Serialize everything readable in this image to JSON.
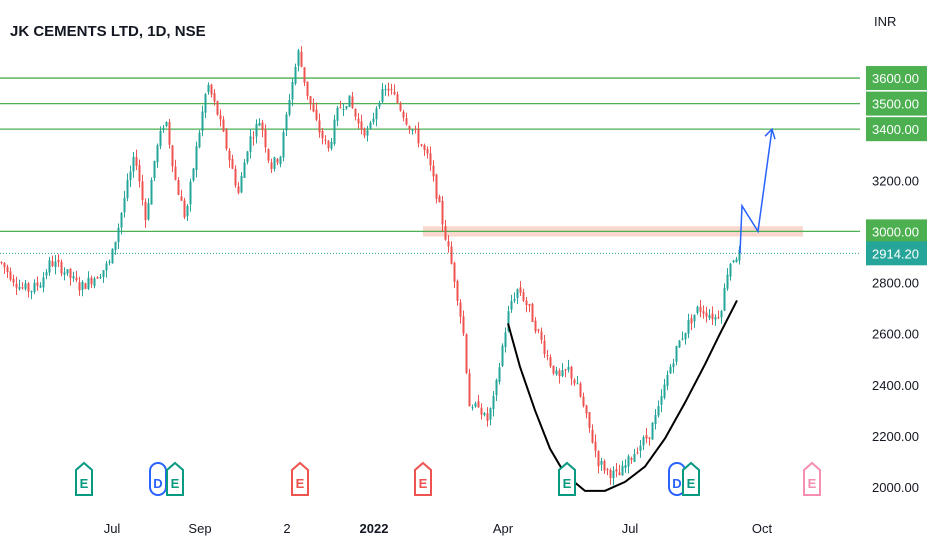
{
  "header": {
    "title": "JK CEMENTS LTD, 1D, NSE"
  },
  "colors": {
    "up": "#26a69a",
    "down": "#ef5350",
    "level_line": "#4caf50",
    "level_label_bg": "#4caf50",
    "last_price_bg": "#26a69a",
    "resistance_zone": "#f5c6b8",
    "projection": "#2962ff",
    "cup_curve": "#000000",
    "earnings": "#ef5350",
    "earnings_alt": "#089981",
    "earnings_future": "#f48fb1"
  },
  "chart_data": {
    "type": "candlestick",
    "title": "JK CEMENTS LTD, 1D, NSE",
    "currency": "INR",
    "y_axis": {
      "ticks": [
        "3600.00",
        "3500.00",
        "3400.00",
        "3200.00",
        "3000.00",
        "2914.20",
        "2800.00",
        "2600.00",
        "2400.00",
        "2200.00",
        "2000.00"
      ],
      "range": [
        1950,
        3800
      ]
    },
    "x_axis": {
      "ticks": [
        "Jul",
        "Sep",
        "2",
        "2022",
        "Apr",
        "Jul",
        "Oct"
      ]
    },
    "horizontal_levels": [
      3600,
      3500,
      3400,
      3000
    ],
    "last_price": 2914.2,
    "resistance_zone": [
      2980,
      3020
    ],
    "price_path": [
      {
        "t": 0,
        "p": 2880
      },
      {
        "t": 10,
        "p": 2830
      },
      {
        "t": 20,
        "p": 2780
      },
      {
        "t": 30,
        "p": 2770
      },
      {
        "t": 40,
        "p": 2800
      },
      {
        "t": 50,
        "p": 2880
      },
      {
        "t": 60,
        "p": 2860
      },
      {
        "t": 70,
        "p": 2820
      },
      {
        "t": 80,
        "p": 2780
      },
      {
        "t": 90,
        "p": 2810
      },
      {
        "t": 100,
        "p": 2840
      },
      {
        "t": 110,
        "p": 2880
      },
      {
        "t": 118,
        "p": 3020
      },
      {
        "t": 125,
        "p": 3150
      },
      {
        "t": 135,
        "p": 3300
      },
      {
        "t": 145,
        "p": 3050
      },
      {
        "t": 155,
        "p": 3300
      },
      {
        "t": 165,
        "p": 3450
      },
      {
        "t": 175,
        "p": 3200
      },
      {
        "t": 185,
        "p": 3050
      },
      {
        "t": 195,
        "p": 3300
      },
      {
        "t": 207,
        "p": 3580
      },
      {
        "t": 218,
        "p": 3450
      },
      {
        "t": 228,
        "p": 3300
      },
      {
        "t": 238,
        "p": 3150
      },
      {
        "t": 248,
        "p": 3350
      },
      {
        "t": 260,
        "p": 3440
      },
      {
        "t": 270,
        "p": 3250
      },
      {
        "t": 280,
        "p": 3300
      },
      {
        "t": 290,
        "p": 3550
      },
      {
        "t": 298,
        "p": 3700
      },
      {
        "t": 308,
        "p": 3520
      },
      {
        "t": 318,
        "p": 3400
      },
      {
        "t": 328,
        "p": 3320
      },
      {
        "t": 338,
        "p": 3480
      },
      {
        "t": 348,
        "p": 3520
      },
      {
        "t": 358,
        "p": 3420
      },
      {
        "t": 368,
        "p": 3380
      },
      {
        "t": 378,
        "p": 3520
      },
      {
        "t": 388,
        "p": 3560
      },
      {
        "t": 398,
        "p": 3500
      },
      {
        "t": 408,
        "p": 3420
      },
      {
        "t": 418,
        "p": 3360
      },
      {
        "t": 428,
        "p": 3280
      },
      {
        "t": 436,
        "p": 3150
      },
      {
        "t": 445,
        "p": 2980
      },
      {
        "t": 455,
        "p": 2800
      },
      {
        "t": 463,
        "p": 2600
      },
      {
        "t": 470,
        "p": 2280
      },
      {
        "t": 478,
        "p": 2330
      },
      {
        "t": 486,
        "p": 2250
      },
      {
        "t": 494,
        "p": 2350
      },
      {
        "t": 502,
        "p": 2550
      },
      {
        "t": 510,
        "p": 2720
      },
      {
        "t": 518,
        "p": 2780
      },
      {
        "t": 528,
        "p": 2700
      },
      {
        "t": 538,
        "p": 2600
      },
      {
        "t": 548,
        "p": 2500
      },
      {
        "t": 558,
        "p": 2420
      },
      {
        "t": 568,
        "p": 2460
      },
      {
        "t": 578,
        "p": 2380
      },
      {
        "t": 588,
        "p": 2240
      },
      {
        "t": 598,
        "p": 2100
      },
      {
        "t": 608,
        "p": 2060
      },
      {
        "t": 618,
        "p": 2040
      },
      {
        "t": 628,
        "p": 2100
      },
      {
        "t": 638,
        "p": 2160
      },
      {
        "t": 648,
        "p": 2200
      },
      {
        "t": 658,
        "p": 2300
      },
      {
        "t": 668,
        "p": 2450
      },
      {
        "t": 678,
        "p": 2560
      },
      {
        "t": 688,
        "p": 2640
      },
      {
        "t": 698,
        "p": 2700
      },
      {
        "t": 708,
        "p": 2680
      },
      {
        "t": 716,
        "p": 2660
      },
      {
        "t": 722,
        "p": 2720
      },
      {
        "t": 728,
        "p": 2870
      },
      {
        "t": 734,
        "p": 2900
      },
      {
        "t": 740,
        "p": 2914
      }
    ],
    "projection_path": [
      {
        "t": 740,
        "p": 2914
      },
      {
        "t": 742,
        "p": 3100
      },
      {
        "t": 758,
        "p": 3000
      },
      {
        "t": 772,
        "p": 3400
      }
    ],
    "cup_curve": [
      {
        "t": 508,
        "p": 2640
      },
      {
        "t": 520,
        "p": 2470
      },
      {
        "t": 535,
        "p": 2300
      },
      {
        "t": 550,
        "p": 2150
      },
      {
        "t": 565,
        "p": 2050
      },
      {
        "t": 585,
        "p": 1985
      },
      {
        "t": 605,
        "p": 1985
      },
      {
        "t": 625,
        "p": 2020
      },
      {
        "t": 645,
        "p": 2080
      },
      {
        "t": 665,
        "p": 2190
      },
      {
        "t": 685,
        "p": 2330
      },
      {
        "t": 705,
        "p": 2480
      },
      {
        "t": 720,
        "p": 2600
      },
      {
        "t": 737,
        "p": 2730
      }
    ],
    "event_markers": [
      {
        "t": 84,
        "label": "E",
        "style": "green"
      },
      {
        "t": 158,
        "label": "D",
        "style": "blue"
      },
      {
        "t": 175,
        "label": "E",
        "style": "green"
      },
      {
        "t": 300,
        "label": "E",
        "style": "red"
      },
      {
        "t": 423,
        "label": "E",
        "style": "red"
      },
      {
        "t": 567,
        "label": "E",
        "style": "green"
      },
      {
        "t": 677,
        "label": "D",
        "style": "blue"
      },
      {
        "t": 691,
        "label": "E",
        "style": "green"
      },
      {
        "t": 812,
        "label": "E",
        "style": "pink"
      }
    ]
  }
}
